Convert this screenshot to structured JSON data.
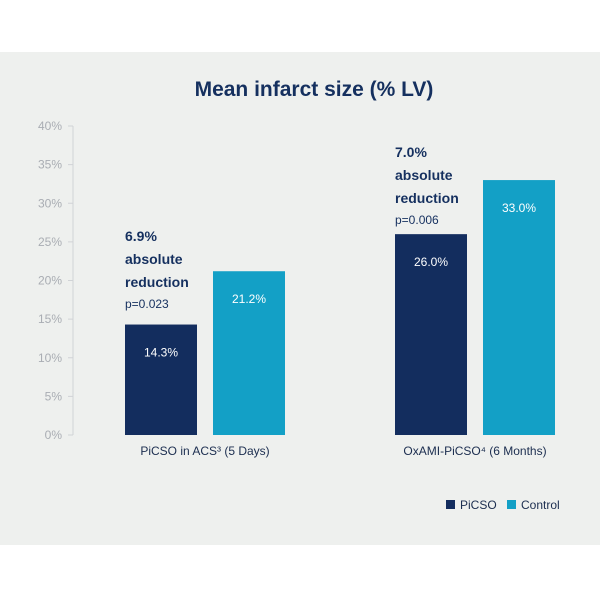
{
  "chart_data": {
    "type": "bar",
    "title": "Mean infarct size (% LV)",
    "xlabel": "",
    "ylabel": "",
    "ylim": [
      0,
      40
    ],
    "yticks": [
      "0%",
      "5%",
      "10%",
      "15%",
      "20%",
      "25%",
      "30%",
      "35%",
      "40%"
    ],
    "ytick_values": [
      0,
      5,
      10,
      15,
      20,
      25,
      30,
      35,
      40
    ],
    "grid": false,
    "legend_position": "bottom-right",
    "categories": [
      "PiCSO in ACS³ (5 Days)",
      "OxAMI-PiCSO⁴ (6 Months)"
    ],
    "series": [
      {
        "name": "PiCSO",
        "color": "#132d5e",
        "values": [
          14.3,
          26.0
        ],
        "labels": [
          "14.3%",
          "26.0%"
        ]
      },
      {
        "name": "Control",
        "color": "#13a0c6",
        "values": [
          21.2,
          33.0
        ],
        "labels": [
          "21.2%",
          "33.0%"
        ]
      }
    ],
    "annotations": [
      {
        "category": "PiCSO in ACS³ (5 Days)",
        "lines": [
          "6.9%",
          "absolute",
          "reduction"
        ],
        "p_value": "p=0.023"
      },
      {
        "category": "OxAMI-PiCSO⁴ (6 Months)",
        "lines": [
          "7.0%",
          "absolute",
          "reduction"
        ],
        "p_value": "p=0.006"
      }
    ]
  }
}
